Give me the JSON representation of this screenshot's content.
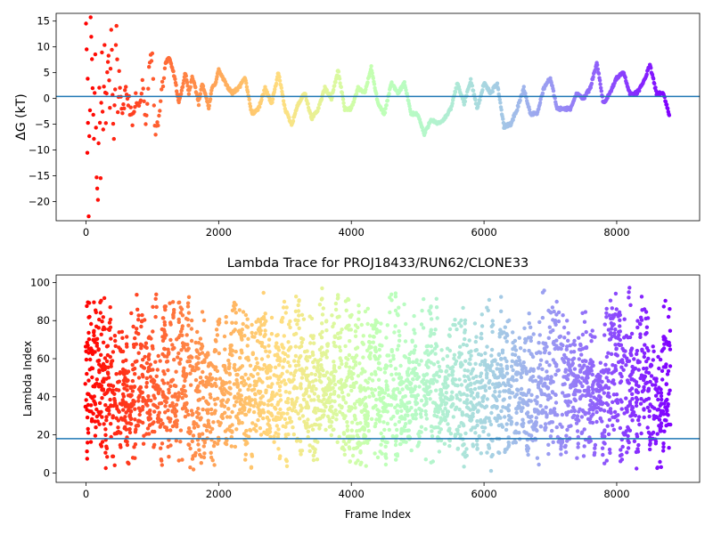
{
  "colors": {
    "hline": "#1f77b4",
    "colormap": "rainbow"
  },
  "chart_data": [
    {
      "type": "scatter",
      "title": "",
      "xlabel": "",
      "ylabel": "ΔG (kT)",
      "xlim": [
        -450,
        9250
      ],
      "ylim": [
        -23.7,
        16.5
      ],
      "xticks": [
        0,
        2000,
        4000,
        6000,
        8000
      ],
      "yticks": [
        -20,
        -15,
        -10,
        -5,
        0,
        5,
        10,
        15
      ],
      "xtick_labels": [
        "0",
        "2000",
        "4000",
        "6000",
        "8000"
      ],
      "ytick_labels": [
        "−20",
        "−15",
        "−10",
        "−5",
        "0",
        "5",
        "10",
        "15"
      ],
      "hline": 0.4,
      "x_max": 8800,
      "color_by": "frame index (rainbow, early frames red → late frames violet)",
      "points": [
        [
          0,
          16
        ],
        [
          10,
          12
        ],
        [
          20,
          -11
        ],
        [
          25,
          5.5
        ],
        [
          30,
          -4
        ],
        [
          40,
          -20
        ],
        [
          50,
          -7
        ],
        [
          60,
          0
        ],
        [
          70,
          13.5
        ],
        [
          80,
          9
        ],
        [
          100,
          2
        ],
        [
          120,
          -10
        ],
        [
          140,
          11
        ],
        [
          160,
          -18
        ],
        [
          180,
          -22
        ],
        [
          200,
          4
        ],
        [
          220,
          -14
        ],
        [
          240,
          7
        ],
        [
          260,
          -8
        ],
        [
          280,
          13
        ],
        [
          300,
          -5
        ],
        [
          320,
          3
        ],
        [
          340,
          9
        ],
        [
          360,
          -3
        ],
        [
          380,
          12
        ],
        [
          400,
          1
        ],
        [
          420,
          -6
        ],
        [
          440,
          4
        ],
        [
          460,
          13.5
        ],
        [
          480,
          -2
        ],
        [
          500,
          6
        ],
        [
          550,
          -4
        ],
        [
          600,
          2
        ],
        [
          650,
          -1
        ],
        [
          700,
          -5
        ],
        [
          750,
          1
        ],
        [
          800,
          -2
        ],
        [
          850,
          3
        ],
        [
          900,
          -6
        ],
        [
          950,
          6
        ],
        [
          1000,
          8
        ],
        [
          1050,
          -8
        ],
        [
          1100,
          -3
        ],
        [
          1150,
          2
        ],
        [
          1200,
          7
        ],
        [
          1250,
          8
        ],
        [
          1300,
          6
        ],
        [
          1350,
          3
        ],
        [
          1400,
          -1
        ],
        [
          1450,
          2
        ],
        [
          1500,
          5
        ],
        [
          1550,
          1
        ],
        [
          1600,
          4
        ],
        [
          1650,
          2
        ],
        [
          1700,
          -1
        ],
        [
          1750,
          3
        ],
        [
          1800,
          1
        ],
        [
          1850,
          -2
        ],
        [
          1900,
          2
        ],
        [
          1950,
          3
        ],
        [
          2000,
          5.5
        ],
        [
          2100,
          3
        ],
        [
          2200,
          1
        ],
        [
          2300,
          2
        ],
        [
          2400,
          4
        ],
        [
          2500,
          -3
        ],
        [
          2600,
          -2
        ],
        [
          2700,
          2
        ],
        [
          2800,
          -1
        ],
        [
          2900,
          5
        ],
        [
          3000,
          -2
        ],
        [
          3100,
          -5
        ],
        [
          3200,
          -1
        ],
        [
          3300,
          1
        ],
        [
          3400,
          -4
        ],
        [
          3500,
          -2
        ],
        [
          3600,
          2
        ],
        [
          3700,
          0
        ],
        [
          3800,
          5.5
        ],
        [
          3900,
          -2
        ],
        [
          4000,
          -2
        ],
        [
          4100,
          2
        ],
        [
          4200,
          1
        ],
        [
          4300,
          6
        ],
        [
          4400,
          -1
        ],
        [
          4500,
          -3
        ],
        [
          4600,
          3
        ],
        [
          4700,
          1
        ],
        [
          4800,
          3
        ],
        [
          4900,
          -3
        ],
        [
          5000,
          -3
        ],
        [
          5100,
          -7
        ],
        [
          5200,
          -4
        ],
        [
          5300,
          -5
        ],
        [
          5400,
          -4
        ],
        [
          5500,
          -2
        ],
        [
          5600,
          3
        ],
        [
          5700,
          -1
        ],
        [
          5800,
          3.5
        ],
        [
          5900,
          -2
        ],
        [
          6000,
          3
        ],
        [
          6100,
          1
        ],
        [
          6200,
          3
        ],
        [
          6300,
          -5.5
        ],
        [
          6400,
          -5
        ],
        [
          6500,
          -2
        ],
        [
          6600,
          2
        ],
        [
          6700,
          -3
        ],
        [
          6800,
          -3
        ],
        [
          6900,
          2
        ],
        [
          7000,
          4
        ],
        [
          7100,
          -2
        ],
        [
          7200,
          -2
        ],
        [
          7300,
          -2
        ],
        [
          7400,
          1
        ],
        [
          7500,
          0
        ],
        [
          7600,
          2
        ],
        [
          7700,
          7
        ],
        [
          7800,
          -1
        ],
        [
          7900,
          1
        ],
        [
          8000,
          4
        ],
        [
          8100,
          5
        ],
        [
          8200,
          1
        ],
        [
          8300,
          1
        ],
        [
          8400,
          3
        ],
        [
          8500,
          6.5
        ],
        [
          8600,
          1
        ],
        [
          8700,
          1
        ],
        [
          8800,
          -3.5
        ]
      ]
    },
    {
      "type": "scatter",
      "title": "Lambda Trace for PROJ18433/RUN62/CLONE33",
      "xlabel": "Frame Index",
      "ylabel": "Lambda Index",
      "xlim": [
        -450,
        9250
      ],
      "ylim": [
        -4.95,
        103.95
      ],
      "xticks": [
        0,
        2000,
        4000,
        6000,
        8000
      ],
      "yticks": [
        0,
        20,
        40,
        60,
        80,
        100
      ],
      "xtick_labels": [
        "0",
        "2000",
        "4000",
        "6000",
        "8000"
      ],
      "ytick_labels": [
        "0",
        "20",
        "40",
        "60",
        "80",
        "100"
      ],
      "hline": 18,
      "x_max": 8800,
      "y_range": [
        0,
        99
      ],
      "color_by": "frame index (rainbow, early frames red → late frames violet)"
    }
  ]
}
